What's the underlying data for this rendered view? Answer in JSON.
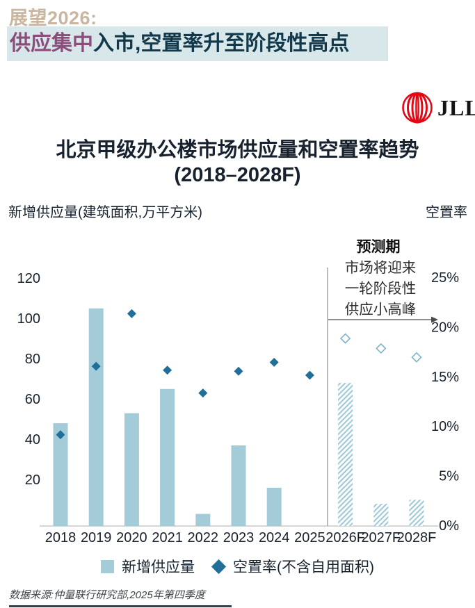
{
  "header": {
    "eyebrow": "展望2026:",
    "headline_highlight": "供应集中",
    "headline_rest": "入市,空置率升至阶段性高点"
  },
  "logo": {
    "brand": "JLL"
  },
  "title": {
    "line1": "北京甲级办公楼市场供应量和空置率趋势",
    "line2": "(2018–2028F)"
  },
  "chart_data": {
    "type": "bar",
    "categories": [
      "2018",
      "2019",
      "2020",
      "2021",
      "2022",
      "2023",
      "2024",
      "2025",
      "2026F",
      "2027F",
      "2028F"
    ],
    "series": [
      {
        "name": "新增供应量",
        "type": "bar",
        "axis": "left",
        "unit": "万平方米",
        "values": [
          51,
          108,
          56,
          68,
          6,
          40,
          19,
          0,
          71,
          11,
          13
        ],
        "forecast_start_index": 8
      },
      {
        "name": "空置率(不含自用面积)",
        "type": "scatter",
        "marker": "diamond",
        "axis": "right",
        "unit": "%",
        "values": [
          9.2,
          16.1,
          21.4,
          15.7,
          13.4,
          15.6,
          16.5,
          15.2,
          18.9,
          17.9,
          17.0
        ],
        "forecast_start_index": 8
      }
    ],
    "left_axis": {
      "title": "新增供应量(建筑面积,万平方米)",
      "ticks": [
        120,
        100,
        80,
        60,
        40,
        20
      ],
      "range": [
        0,
        130
      ]
    },
    "right_axis": {
      "title": "空置率",
      "ticks": [
        "25%",
        "20%",
        "15%",
        "10%",
        "5%",
        "0%"
      ],
      "range": [
        0,
        25
      ]
    },
    "annotation": {
      "title": "预测期",
      "lines": [
        "市场将迎来",
        "一轮阶段性",
        "供应小高峰"
      ]
    },
    "legend_position": "bottom",
    "grid": false
  },
  "colors": {
    "bar": "#a3ccd8",
    "hatch_stripe": "#9fc9d6",
    "diamond": "#1f6f99",
    "forecast_diamond_stroke": "#7db2cb",
    "axis_line": "#adadad",
    "divider": "#8f8f8f",
    "arrow": "#4a4a4a",
    "text_dark": "#17222e",
    "annotation_text": "#2f2f2f",
    "highlight_bg": "#d8e8ea",
    "eyebrow": "#c9b6a1",
    "headline_purple": "#8b4d7c",
    "headline_teal": "#12394b",
    "jll_red": "#e30613"
  },
  "footer": {
    "source": "数据来源:仲量联行研究部,2025年第四季度"
  }
}
